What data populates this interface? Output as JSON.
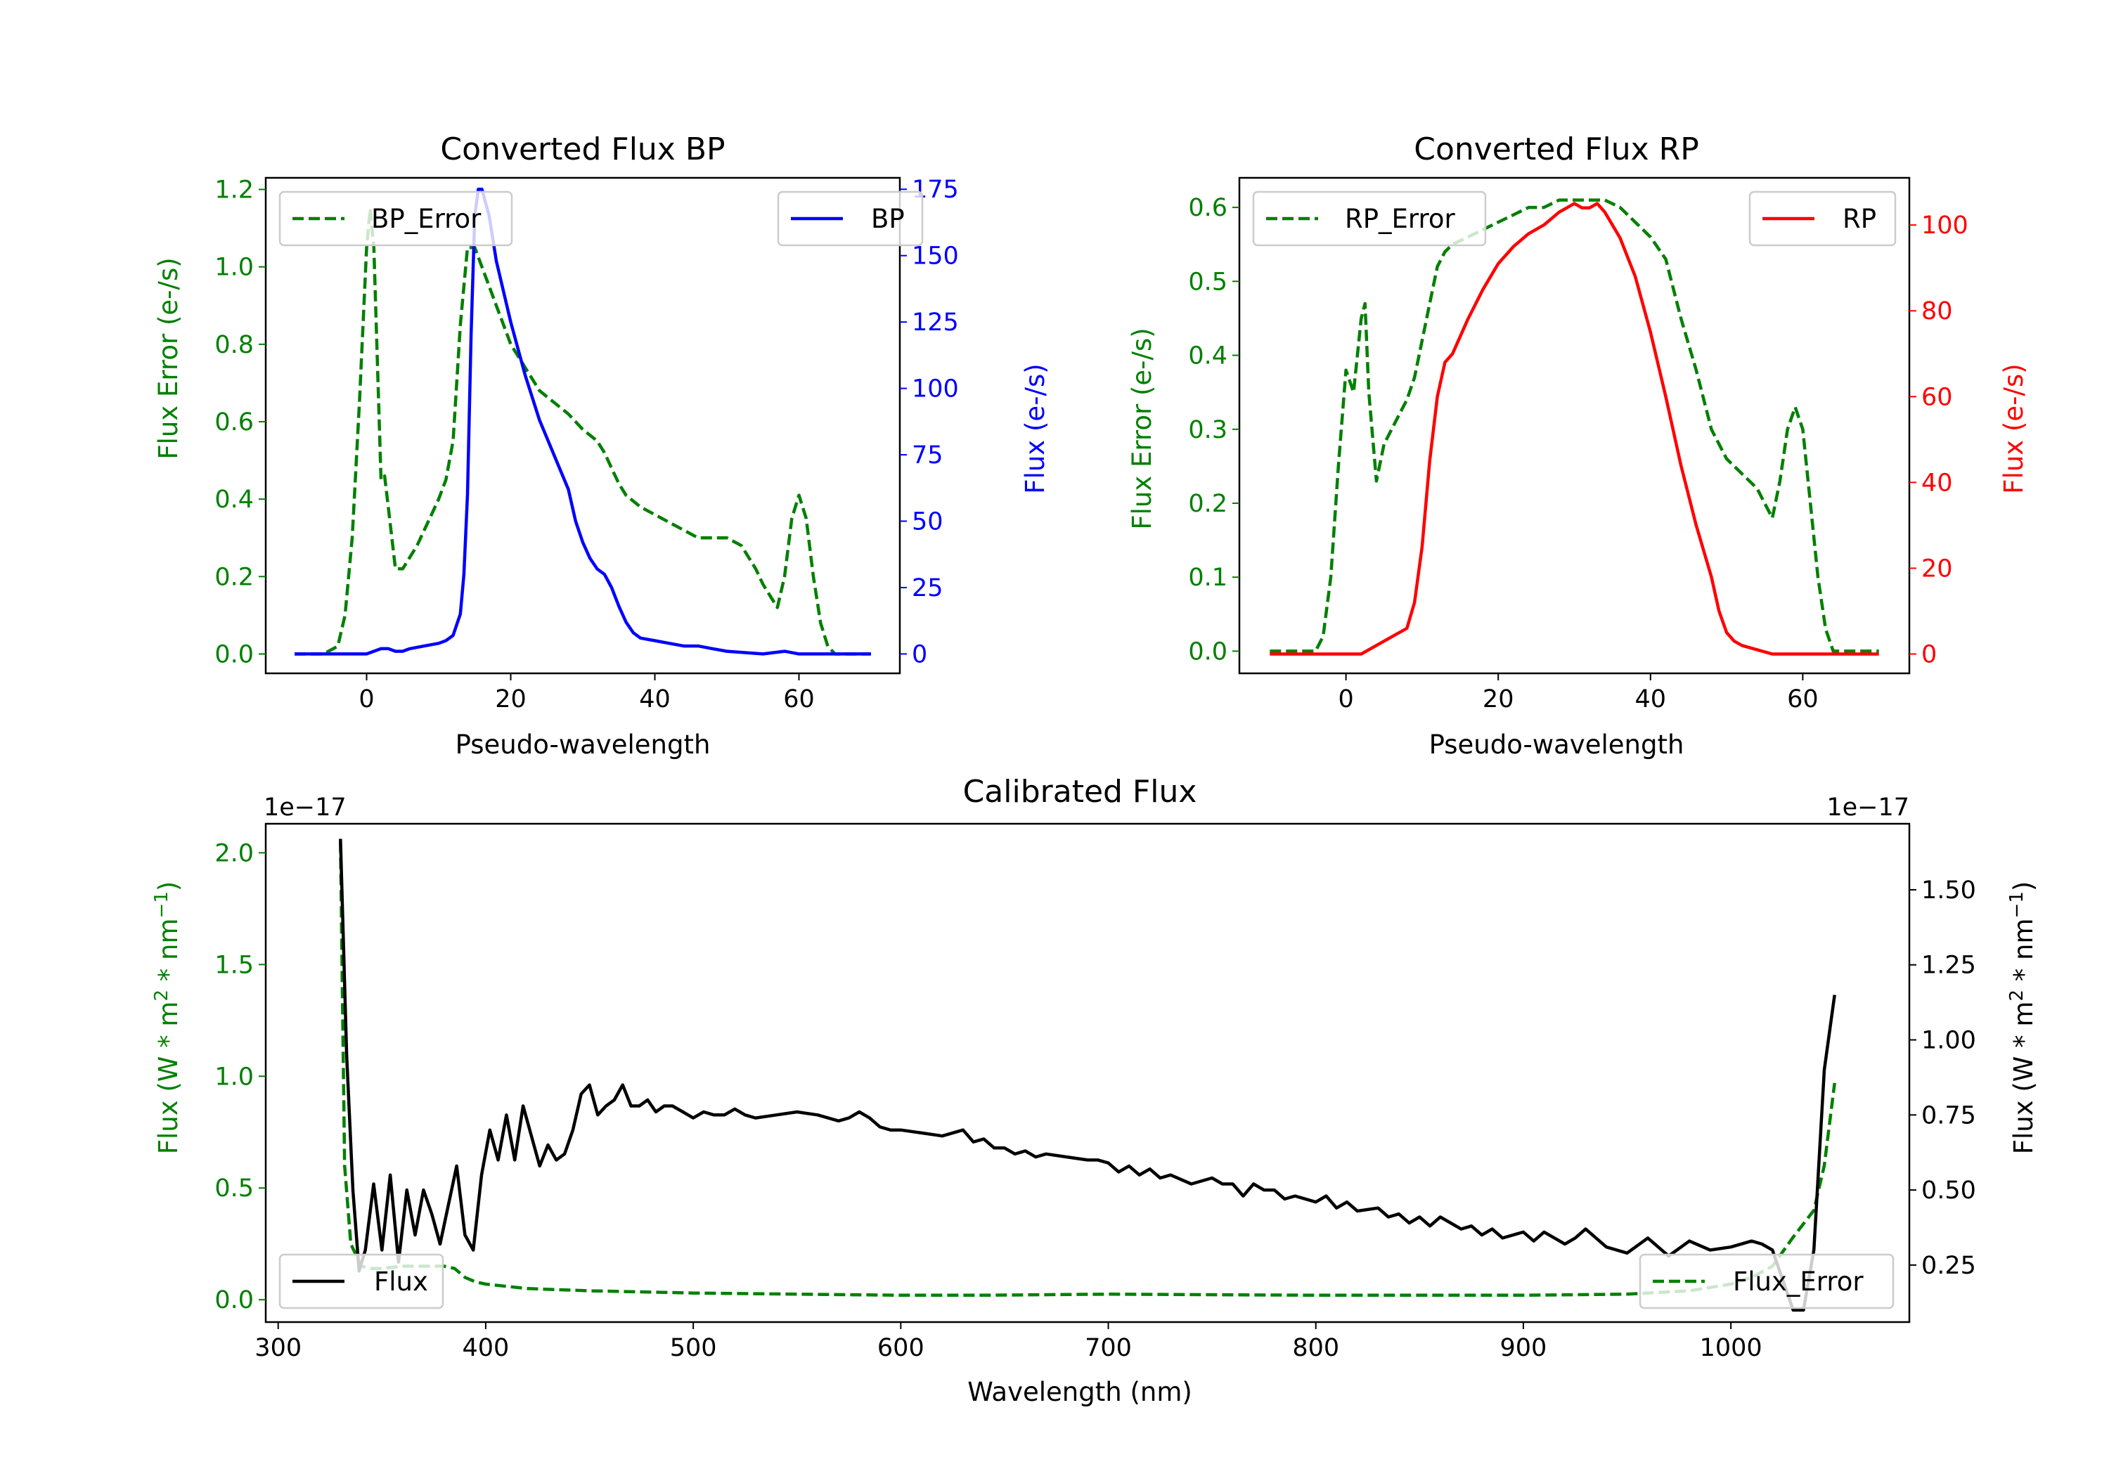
{
  "chart_data": [
    {
      "type": "line",
      "title": "Converted Flux BP",
      "xlabel": "Pseudo-wavelength",
      "ylabel_left": "Flux Error (e-/s)",
      "ylabel_right": "Flux (e-/s)",
      "xlim": [
        -14,
        74
      ],
      "ylim_left": [
        -0.05,
        1.23
      ],
      "ylim_right": [
        -7.3,
        179.3
      ],
      "xticks": [
        0,
        20,
        40,
        60
      ],
      "yticks_left": [
        0.0,
        0.2,
        0.4,
        0.6,
        0.8,
        1.0,
        1.2
      ],
      "yticks_left_labels": [
        "0.0",
        "0.2",
        "0.4",
        "0.6",
        "0.8",
        "1.0",
        "1.2"
      ],
      "yticks_right": [
        0,
        25,
        50,
        75,
        100,
        125,
        150,
        175
      ],
      "yticks_right_labels": [
        "0",
        "25",
        "50",
        "75",
        "100",
        "125",
        "150",
        "175"
      ],
      "left_color": "#008000",
      "right_color": "#0000ff",
      "series": [
        {
          "name": "BP_Error",
          "axis": "left",
          "style": "dashed",
          "color": "#008000",
          "x": [
            -10,
            -6,
            -4,
            -3,
            -2,
            -1,
            0,
            0.5,
            1,
            1.5,
            2,
            2.5,
            3,
            3.5,
            4,
            5,
            6,
            7,
            8,
            9,
            10,
            11,
            12,
            13,
            14,
            15,
            16,
            17,
            18,
            19,
            20,
            21,
            22,
            23,
            24,
            26,
            28,
            30,
            32,
            33,
            34,
            35,
            36,
            38,
            40,
            42,
            44,
            46,
            48,
            50,
            52,
            53,
            54,
            55,
            56,
            57,
            58,
            59,
            60,
            61,
            62,
            63,
            64,
            65,
            66,
            68,
            70
          ],
          "y": [
            0.0,
            0.0,
            0.02,
            0.1,
            0.3,
            0.65,
            1.05,
            1.15,
            1.05,
            0.75,
            0.45,
            0.46,
            0.38,
            0.3,
            0.22,
            0.22,
            0.25,
            0.28,
            0.32,
            0.36,
            0.4,
            0.45,
            0.55,
            0.85,
            1.05,
            1.05,
            1.0,
            0.95,
            0.9,
            0.85,
            0.8,
            0.77,
            0.74,
            0.71,
            0.68,
            0.65,
            0.62,
            0.58,
            0.55,
            0.52,
            0.48,
            0.44,
            0.41,
            0.38,
            0.36,
            0.34,
            0.32,
            0.3,
            0.3,
            0.3,
            0.28,
            0.25,
            0.22,
            0.18,
            0.15,
            0.12,
            0.2,
            0.35,
            0.41,
            0.35,
            0.2,
            0.08,
            0.02,
            0.0,
            0.0,
            0.0,
            0.0
          ]
        },
        {
          "name": "BP",
          "axis": "right",
          "style": "solid",
          "color": "#0000ff",
          "x": [
            -10,
            -6,
            -4,
            -2,
            0,
            1,
            2,
            3,
            4,
            5,
            6,
            8,
            10,
            11,
            12,
            13,
            13.5,
            14,
            14.5,
            15,
            15.5,
            16,
            17,
            18,
            20,
            22,
            24,
            26,
            28,
            29,
            30,
            31,
            32,
            33,
            34,
            35,
            36,
            37,
            38,
            40,
            42,
            44,
            46,
            48,
            50,
            55,
            58,
            60,
            62,
            65,
            70
          ],
          "y": [
            0,
            0,
            0,
            0,
            0,
            1,
            2,
            2,
            1,
            1,
            2,
            3,
            4,
            5,
            7,
            15,
            30,
            60,
            120,
            165,
            175,
            175,
            165,
            148,
            125,
            105,
            88,
            75,
            62,
            50,
            42,
            36,
            32,
            30,
            25,
            18,
            12,
            8,
            6,
            5,
            4,
            3,
            3,
            2,
            1,
            0,
            1,
            0,
            0,
            0,
            0
          ]
        }
      ]
    },
    {
      "type": "line",
      "title": "Converted Flux RP",
      "xlabel": "Pseudo-wavelength",
      "ylabel_left": "Flux Error (e-/s)",
      "ylabel_right": "Flux (e-/s)",
      "xlim": [
        -14,
        74
      ],
      "ylim_left": [
        -0.03,
        0.64
      ],
      "ylim_right": [
        -4.5,
        111
      ],
      "xticks": [
        0,
        20,
        40,
        60
      ],
      "yticks_left": [
        0.0,
        0.1,
        0.2,
        0.3,
        0.4,
        0.5,
        0.6
      ],
      "yticks_left_labels": [
        "0.0",
        "0.1",
        "0.2",
        "0.3",
        "0.4",
        "0.5",
        "0.6"
      ],
      "yticks_right": [
        0,
        20,
        40,
        60,
        80,
        100
      ],
      "yticks_right_labels": [
        "0",
        "20",
        "40",
        "60",
        "80",
        "100"
      ],
      "left_color": "#008000",
      "right_color": "#ff0000",
      "series": [
        {
          "name": "RP_Error",
          "axis": "left",
          "style": "dashed",
          "color": "#008000",
          "x": [
            -10,
            -4,
            -3,
            -2,
            -1,
            0,
            1,
            2,
            2.5,
            3,
            4,
            5,
            6,
            7,
            8,
            9,
            10,
            11,
            12,
            13,
            14,
            16,
            18,
            20,
            22,
            24,
            26,
            28,
            30,
            32,
            34,
            36,
            38,
            40,
            42,
            44,
            46,
            48,
            50,
            52,
            54,
            55,
            56,
            57,
            58,
            59,
            60,
            61,
            62,
            63,
            64,
            66,
            70
          ],
          "y": [
            0.0,
            0.0,
            0.02,
            0.1,
            0.25,
            0.38,
            0.35,
            0.45,
            0.47,
            0.35,
            0.23,
            0.28,
            0.3,
            0.32,
            0.34,
            0.37,
            0.42,
            0.47,
            0.52,
            0.54,
            0.55,
            0.56,
            0.57,
            0.58,
            0.59,
            0.6,
            0.6,
            0.61,
            0.61,
            0.61,
            0.61,
            0.6,
            0.58,
            0.56,
            0.53,
            0.45,
            0.38,
            0.3,
            0.26,
            0.24,
            0.22,
            0.2,
            0.18,
            0.23,
            0.3,
            0.33,
            0.3,
            0.2,
            0.1,
            0.03,
            0.0,
            0.0,
            0.0
          ]
        },
        {
          "name": "RP",
          "axis": "right",
          "style": "solid",
          "color": "#ff0000",
          "x": [
            -10,
            -4,
            0,
            2,
            4,
            6,
            8,
            9,
            10,
            11,
            12,
            13,
            14,
            16,
            18,
            20,
            22,
            24,
            26,
            28,
            29,
            30,
            31,
            32,
            33,
            34,
            36,
            38,
            40,
            42,
            44,
            46,
            48,
            49,
            50,
            51,
            52,
            54,
            56,
            58,
            60,
            62,
            65,
            70
          ],
          "y": [
            0,
            0,
            0,
            0,
            2,
            4,
            6,
            12,
            25,
            45,
            60,
            68,
            70,
            78,
            85,
            91,
            95,
            98,
            100,
            103,
            104,
            105,
            104,
            104,
            105,
            103,
            97,
            88,
            75,
            60,
            44,
            30,
            18,
            10,
            5,
            3,
            2,
            1,
            0,
            0,
            0,
            0,
            0,
            0
          ]
        }
      ]
    },
    {
      "type": "line",
      "title": "Calibrated Flux",
      "xlabel": "Wavelength (nm)",
      "ylabel_left_parts": [
        "Flux (W * m",
        "2",
        " * nm",
        "−1",
        ")"
      ],
      "ylabel_right_parts": [
        "Flux (W * m",
        "2",
        " * nm",
        "−1",
        ")"
      ],
      "offset_left": "1e−17",
      "offset_right": "1e−17",
      "xlim": [
        294,
        1086
      ],
      "ylim_left": [
        -0.1,
        2.13
      ],
      "ylim_right": [
        0.06,
        1.72
      ],
      "xticks": [
        300,
        400,
        500,
        600,
        700,
        800,
        900,
        1000
      ],
      "yticks_left": [
        0.0,
        0.5,
        1.0,
        1.5,
        2.0
      ],
      "yticks_left_labels": [
        "0.0",
        "0.5",
        "1.0",
        "1.5",
        "2.0"
      ],
      "yticks_right": [
        0.25,
        0.5,
        0.75,
        1.0,
        1.25,
        1.5
      ],
      "yticks_right_labels": [
        "0.25",
        "0.50",
        "0.75",
        "1.00",
        "1.25",
        "1.50"
      ],
      "left_color": "#008000",
      "right_color": "#000000",
      "series": [
        {
          "name": "Flux_Error",
          "axis": "left",
          "style": "dashed",
          "color": "#008000",
          "x": [
            330,
            332,
            335,
            340,
            345,
            350,
            360,
            370,
            380,
            385,
            390,
            395,
            400,
            420,
            450,
            500,
            550,
            600,
            640,
            700,
            800,
            900,
            950,
            980,
            1000,
            1010,
            1020,
            1030,
            1040,
            1045,
            1050
          ],
          "y": [
            2.05,
            0.6,
            0.25,
            0.15,
            0.14,
            0.14,
            0.15,
            0.15,
            0.15,
            0.14,
            0.1,
            0.08,
            0.07,
            0.05,
            0.04,
            0.03,
            0.025,
            0.02,
            0.02,
            0.025,
            0.02,
            0.02,
            0.025,
            0.04,
            0.07,
            0.1,
            0.15,
            0.28,
            0.4,
            0.6,
            0.97
          ]
        },
        {
          "name": "Flux",
          "axis": "right",
          "style": "solid",
          "color": "#000000",
          "x": [
            330,
            333,
            336,
            339,
            342,
            346,
            350,
            354,
            358,
            362,
            366,
            370,
            374,
            378,
            382,
            386,
            390,
            394,
            398,
            402,
            406,
            410,
            414,
            418,
            422,
            426,
            430,
            434,
            438,
            442,
            446,
            450,
            454,
            458,
            462,
            466,
            470,
            474,
            478,
            482,
            486,
            490,
            495,
            500,
            505,
            510,
            515,
            520,
            525,
            530,
            540,
            550,
            560,
            570,
            575,
            580,
            585,
            590,
            595,
            600,
            610,
            620,
            630,
            635,
            640,
            645,
            650,
            655,
            660,
            665,
            670,
            680,
            690,
            695,
            700,
            705,
            710,
            715,
            720,
            725,
            730,
            740,
            750,
            755,
            760,
            765,
            770,
            775,
            780,
            785,
            790,
            800,
            805,
            810,
            815,
            820,
            830,
            835,
            840,
            845,
            850,
            855,
            860,
            870,
            875,
            880,
            885,
            890,
            900,
            905,
            910,
            915,
            920,
            925,
            930,
            940,
            950,
            960,
            970,
            980,
            990,
            1000,
            1010,
            1015,
            1020,
            1025,
            1030,
            1035,
            1040,
            1045,
            1050
          ],
          "y": [
            1.67,
            0.95,
            0.5,
            0.23,
            0.3,
            0.52,
            0.3,
            0.55,
            0.26,
            0.5,
            0.35,
            0.5,
            0.42,
            0.32,
            0.45,
            0.58,
            0.35,
            0.3,
            0.55,
            0.7,
            0.6,
            0.75,
            0.6,
            0.78,
            0.68,
            0.58,
            0.65,
            0.6,
            0.62,
            0.7,
            0.82,
            0.85,
            0.75,
            0.78,
            0.8,
            0.85,
            0.78,
            0.78,
            0.8,
            0.76,
            0.78,
            0.78,
            0.76,
            0.74,
            0.76,
            0.75,
            0.75,
            0.77,
            0.75,
            0.74,
            0.75,
            0.76,
            0.75,
            0.73,
            0.74,
            0.76,
            0.74,
            0.71,
            0.7,
            0.7,
            0.69,
            0.68,
            0.7,
            0.66,
            0.67,
            0.64,
            0.64,
            0.62,
            0.63,
            0.61,
            0.62,
            0.61,
            0.6,
            0.6,
            0.59,
            0.56,
            0.58,
            0.55,
            0.57,
            0.54,
            0.55,
            0.52,
            0.54,
            0.52,
            0.52,
            0.48,
            0.52,
            0.5,
            0.5,
            0.47,
            0.48,
            0.46,
            0.48,
            0.44,
            0.46,
            0.43,
            0.44,
            0.41,
            0.42,
            0.39,
            0.41,
            0.38,
            0.41,
            0.37,
            0.38,
            0.35,
            0.37,
            0.34,
            0.36,
            0.33,
            0.36,
            0.34,
            0.32,
            0.34,
            0.37,
            0.31,
            0.29,
            0.34,
            0.28,
            0.33,
            0.3,
            0.31,
            0.33,
            0.32,
            0.3,
            0.2,
            0.1,
            0.1,
            0.3,
            0.9,
            1.15
          ]
        }
      ]
    }
  ]
}
